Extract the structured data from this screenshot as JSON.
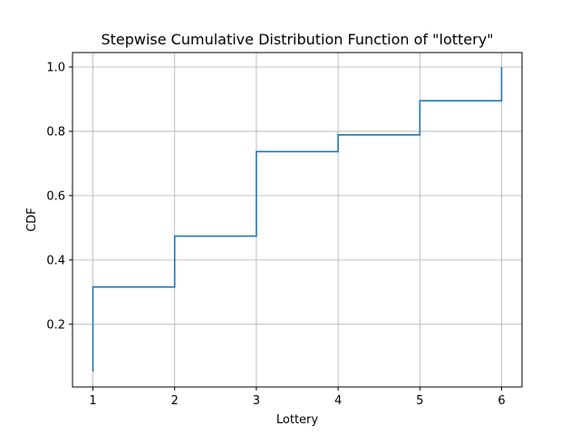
{
  "chart_data": {
    "type": "line",
    "step": "post",
    "title": "Stepwise Cumulative Distribution Function of \"lottery\"",
    "xlabel": "Lottery",
    "ylabel": "CDF",
    "x": [
      1,
      2,
      3,
      4,
      5,
      6
    ],
    "y": [
      0.316,
      0.474,
      0.737,
      0.789,
      0.895,
      1.0
    ],
    "y_start": 0.053,
    "xlim": [
      0.75,
      6.25
    ],
    "ylim": [
      0.005,
      1.045
    ],
    "xticks": [
      1,
      2,
      3,
      4,
      5,
      6
    ],
    "yticks": [
      0.2,
      0.4,
      0.6,
      0.8,
      1.0
    ],
    "ytick_labels": [
      "0.2",
      "0.4",
      "0.6",
      "0.8",
      "1.0"
    ],
    "grid": true,
    "color": "#1f77b4"
  }
}
